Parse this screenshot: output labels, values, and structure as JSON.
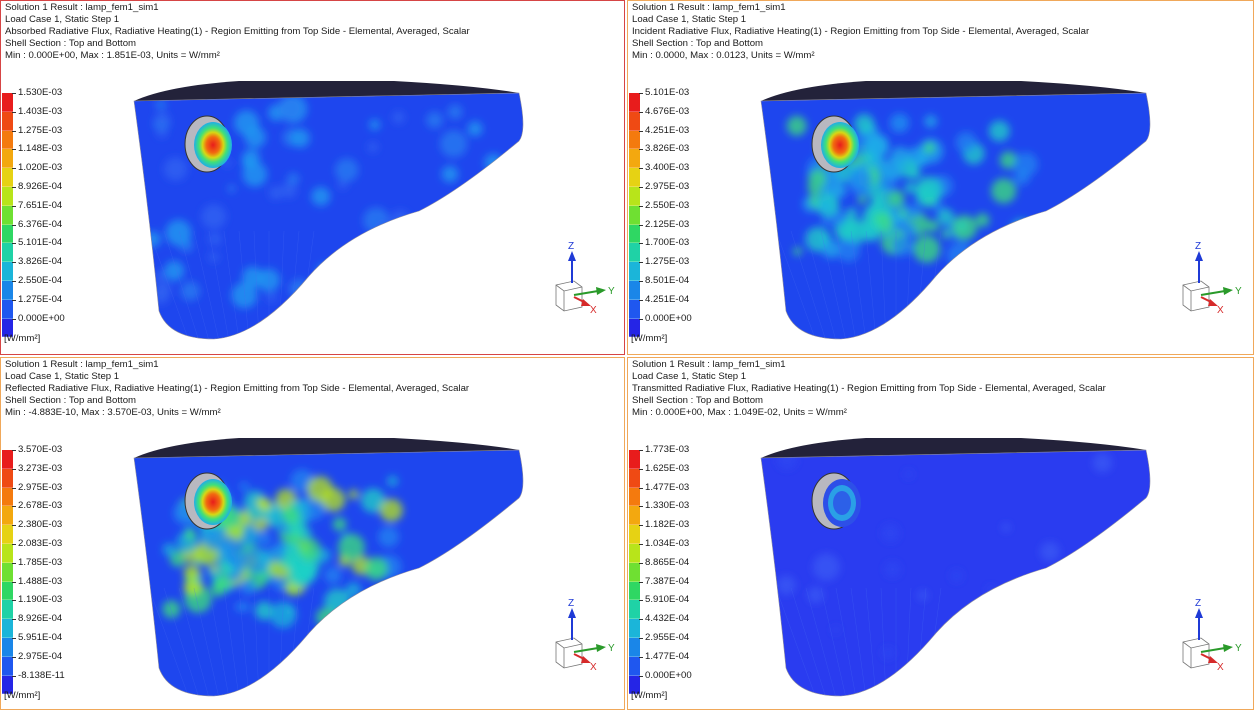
{
  "viewports": [
    {
      "header": {
        "line1": "Solution 1 Result : lamp_fem1_sim1",
        "line2": "Load Case 1, Static Step 1",
        "line3": "Absorbed Radiative Flux, Radiative Heating(1) - Region Emitting from Top Side - Elemental, Averaged, Scalar",
        "line4": "Shell Section : Top and Bottom",
        "line5": "Min : 0.000E+00, Max : 1.851E-03, Units = W/mm²"
      },
      "legend_labels": [
        "1.530E-03",
        "1.403E-03",
        "1.275E-03",
        "1.148E-03",
        "1.020E-03",
        "8.926E-04",
        "7.651E-04",
        "6.376E-04",
        "5.101E-04",
        "3.826E-04",
        "2.550E-04",
        "1.275E-04",
        "0.000E+00"
      ],
      "units": "[W/mm²]",
      "variant": "absorbed"
    },
    {
      "header": {
        "line1": "Solution 1 Result : lamp_fem1_sim1",
        "line2": "Load Case 1, Static Step 1",
        "line3": "Incident Radiative Flux, Radiative Heating(1) - Region Emitting from Top Side - Elemental, Averaged, Scalar",
        "line4": "Shell Section : Top and Bottom",
        "line5": "Min : 0.0000, Max : 0.0123, Units = W/mm²"
      },
      "legend_labels": [
        "5.101E-03",
        "4.676E-03",
        "4.251E-03",
        "3.826E-03",
        "3.400E-03",
        "2.975E-03",
        "2.550E-03",
        "2.125E-03",
        "1.700E-03",
        "1.275E-03",
        "8.501E-04",
        "4.251E-04",
        "0.000E+00"
      ],
      "units": "[W/mm²]",
      "variant": "incident"
    },
    {
      "header": {
        "line1": "Solution 1 Result : lamp_fem1_sim1",
        "line2": "Load Case 1, Static Step 1",
        "line3": "Reflected Radiative Flux, Radiative Heating(1) - Region Emitting from Top Side - Elemental, Averaged, Scalar",
        "line4": "Shell Section : Top and Bottom",
        "line5": "Min : -4.883E-10, Max : 3.570E-03, Units = W/mm²"
      },
      "legend_labels": [
        "3.570E-03",
        "3.273E-03",
        "2.975E-03",
        "2.678E-03",
        "2.380E-03",
        "2.083E-03",
        "1.785E-03",
        "1.488E-03",
        "1.190E-03",
        "8.926E-04",
        "5.951E-04",
        "2.975E-04",
        "-8.138E-11"
      ],
      "units": "[W/mm²]",
      "variant": "reflected"
    },
    {
      "header": {
        "line1": "Solution 1 Result : lamp_fem1_sim1",
        "line2": "Load Case 1, Static Step 1",
        "line3": "Transmitted Radiative Flux, Radiative Heating(1) - Region Emitting from Top Side - Elemental, Averaged, Scalar",
        "line4": "Shell Section : Top and Bottom",
        "line5": "Min : 0.000E+00, Max : 1.049E-02, Units = W/mm²"
      },
      "legend_labels": [
        "1.773E-03",
        "1.625E-03",
        "1.477E-03",
        "1.330E-03",
        "1.182E-03",
        "1.034E-03",
        "8.865E-04",
        "7.387E-04",
        "5.910E-04",
        "4.432E-04",
        "2.955E-04",
        "1.477E-04",
        "0.000E+00"
      ],
      "units": "[W/mm²]",
      "variant": "transmitted"
    }
  ],
  "triad": {
    "z": "Z",
    "y": "Y",
    "x": "X"
  },
  "colors": {
    "legend_scale": [
      "#e81c1c",
      "#ef4a14",
      "#f47a0e",
      "#f3a80f",
      "#e6d214",
      "#b8e41a",
      "#6fe032",
      "#2fd763",
      "#1fd2a6",
      "#1bb5d9",
      "#1a86e8",
      "#1f57ef",
      "#2525e6"
    ],
    "active_border": "#d64545",
    "inactive_border": "#f0a85a",
    "model_top": "#23223a"
  }
}
